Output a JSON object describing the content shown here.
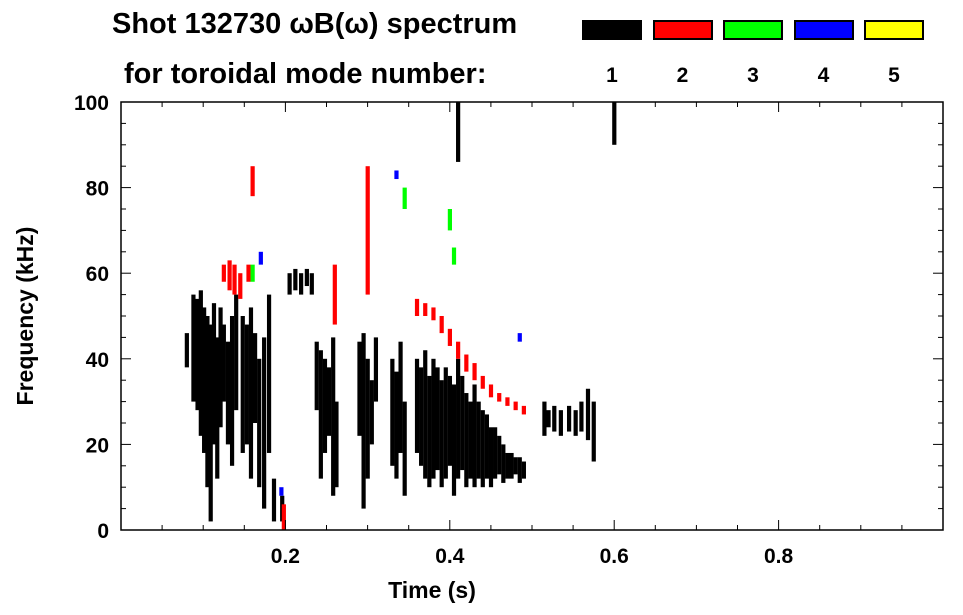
{
  "chart_data": {
    "type": "heatmap",
    "title": "Shot 132730 ωB(ω) spectrum",
    "legend_title": "for toroidal mode number:",
    "legend": [
      {
        "label": "1",
        "color": "#000000"
      },
      {
        "label": "2",
        "color": "#ff0000"
      },
      {
        "label": "3",
        "color": "#00ff00"
      },
      {
        "label": "4",
        "color": "#0000ff"
      },
      {
        "label": "5",
        "color": "#ffff00"
      }
    ],
    "xlabel": "Time (s)",
    "ylabel": "Frequency (kHz)",
    "xlim": [
      0,
      1.0
    ],
    "ylim": [
      0,
      100
    ],
    "xticks": [
      0.2,
      0.4,
      0.6,
      0.8
    ],
    "yticks": [
      0,
      20,
      40,
      60,
      80,
      100
    ],
    "streaks_format": "[time_s, fmin_kHz, fmax_kHz, mode]",
    "streaks": [
      [
        0.08,
        38,
        46,
        1
      ],
      [
        0.088,
        30,
        55,
        1
      ],
      [
        0.093,
        28,
        54,
        1
      ],
      [
        0.097,
        22,
        56,
        1
      ],
      [
        0.101,
        18,
        52,
        1
      ],
      [
        0.105,
        10,
        50,
        1
      ],
      [
        0.109,
        2,
        48,
        1
      ],
      [
        0.113,
        20,
        53,
        1
      ],
      [
        0.117,
        12,
        45,
        1
      ],
      [
        0.121,
        24,
        52,
        1
      ],
      [
        0.125,
        30,
        48,
        1
      ],
      [
        0.13,
        20,
        44,
        1
      ],
      [
        0.135,
        15,
        50,
        1
      ],
      [
        0.14,
        28,
        55,
        1
      ],
      [
        0.148,
        18,
        50,
        1
      ],
      [
        0.153,
        20,
        48,
        1
      ],
      [
        0.158,
        12,
        52,
        1
      ],
      [
        0.163,
        25,
        46,
        1
      ],
      [
        0.168,
        10,
        40,
        1
      ],
      [
        0.174,
        5,
        45,
        1
      ],
      [
        0.18,
        18,
        55,
        1
      ],
      [
        0.186,
        2,
        12,
        1
      ],
      [
        0.196,
        2,
        8,
        1
      ],
      [
        0.205,
        55,
        60,
        1
      ],
      [
        0.212,
        56,
        61,
        1
      ],
      [
        0.219,
        55,
        60,
        1
      ],
      [
        0.226,
        57,
        61,
        1
      ],
      [
        0.232,
        55,
        60,
        1
      ],
      [
        0.238,
        28,
        44,
        1
      ],
      [
        0.243,
        12,
        42,
        1
      ],
      [
        0.248,
        18,
        40,
        1
      ],
      [
        0.253,
        22,
        38,
        1
      ],
      [
        0.258,
        8,
        45,
        1
      ],
      [
        0.262,
        10,
        30,
        1
      ],
      [
        0.29,
        22,
        44,
        1
      ],
      [
        0.295,
        5,
        46,
        1
      ],
      [
        0.3,
        12,
        40,
        1
      ],
      [
        0.305,
        20,
        35,
        1
      ],
      [
        0.31,
        30,
        45,
        1
      ],
      [
        0.33,
        15,
        40,
        1
      ],
      [
        0.335,
        12,
        37,
        1
      ],
      [
        0.34,
        18,
        44,
        1
      ],
      [
        0.345,
        8,
        30,
        1
      ],
      [
        0.36,
        18,
        40,
        1
      ],
      [
        0.365,
        15,
        38,
        1
      ],
      [
        0.37,
        12,
        42,
        1
      ],
      [
        0.375,
        10,
        36,
        1
      ],
      [
        0.38,
        12,
        40,
        1
      ],
      [
        0.385,
        14,
        38,
        1
      ],
      [
        0.39,
        10,
        35,
        1
      ],
      [
        0.395,
        12,
        38,
        1
      ],
      [
        0.4,
        15,
        36,
        1
      ],
      [
        0.405,
        8,
        34,
        1
      ],
      [
        0.41,
        12,
        40,
        1
      ],
      [
        0.415,
        14,
        36,
        1
      ],
      [
        0.42,
        10,
        32,
        1
      ],
      [
        0.425,
        12,
        30,
        1
      ],
      [
        0.43,
        10,
        34,
        1
      ],
      [
        0.435,
        12,
        30,
        1
      ],
      [
        0.44,
        10,
        28,
        1
      ],
      [
        0.445,
        12,
        27,
        1
      ],
      [
        0.45,
        10,
        24,
        1
      ],
      [
        0.455,
        12,
        24,
        1
      ],
      [
        0.46,
        13,
        22,
        1
      ],
      [
        0.465,
        11,
        20,
        1
      ],
      [
        0.47,
        12,
        18,
        1
      ],
      [
        0.475,
        12,
        18,
        1
      ],
      [
        0.48,
        13,
        17,
        1
      ],
      [
        0.485,
        11,
        17,
        1
      ],
      [
        0.49,
        12,
        16,
        1
      ],
      [
        0.515,
        22,
        30,
        1
      ],
      [
        0.52,
        24,
        28,
        1
      ],
      [
        0.527,
        23,
        29,
        1
      ],
      [
        0.535,
        22,
        28,
        1
      ],
      [
        0.545,
        23,
        29,
        1
      ],
      [
        0.553,
        22,
        28,
        1
      ],
      [
        0.56,
        23,
        30,
        1
      ],
      [
        0.568,
        21,
        33,
        1
      ],
      [
        0.575,
        16,
        30,
        1
      ],
      [
        0.41,
        86,
        100,
        1
      ],
      [
        0.6,
        90,
        100,
        1
      ],
      [
        0.125,
        58,
        62,
        2
      ],
      [
        0.132,
        56,
        63,
        2
      ],
      [
        0.138,
        55,
        62,
        2
      ],
      [
        0.145,
        54,
        60,
        2
      ],
      [
        0.155,
        58,
        62,
        2
      ],
      [
        0.16,
        78,
        85,
        2
      ],
      [
        0.198,
        0,
        6,
        2
      ],
      [
        0.26,
        48,
        62,
        2
      ],
      [
        0.3,
        55,
        85,
        2
      ],
      [
        0.36,
        50,
        54,
        2
      ],
      [
        0.37,
        50,
        53,
        2
      ],
      [
        0.38,
        49,
        52,
        2
      ],
      [
        0.39,
        46,
        50,
        2
      ],
      [
        0.4,
        43,
        47,
        2
      ],
      [
        0.41,
        40,
        44,
        2
      ],
      [
        0.42,
        37,
        41,
        2
      ],
      [
        0.43,
        35,
        39,
        2
      ],
      [
        0.44,
        33,
        36,
        2
      ],
      [
        0.45,
        31,
        34,
        2
      ],
      [
        0.46,
        30,
        32,
        2
      ],
      [
        0.47,
        29,
        31,
        2
      ],
      [
        0.48,
        28,
        30,
        2
      ],
      [
        0.49,
        27,
        29,
        2
      ],
      [
        0.16,
        58,
        62,
        3
      ],
      [
        0.345,
        75,
        80,
        3
      ],
      [
        0.4,
        70,
        75,
        3
      ],
      [
        0.405,
        62,
        66,
        3
      ],
      [
        0.17,
        62,
        65,
        4
      ],
      [
        0.335,
        82,
        84,
        4
      ],
      [
        0.195,
        8,
        10,
        4
      ],
      [
        0.485,
        44,
        46,
        4
      ]
    ]
  }
}
